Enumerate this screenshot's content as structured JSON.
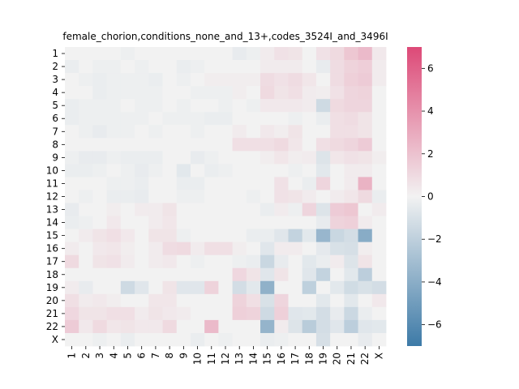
{
  "chart_data": {
    "type": "heatmap",
    "title": "female_chorion,conditions_none_and_13+,codes_3524I_and_3496I",
    "row_labels": [
      "1",
      "2",
      "3",
      "4",
      "5",
      "6",
      "7",
      "8",
      "9",
      "10",
      "11",
      "12",
      "13",
      "14",
      "15",
      "16",
      "17",
      "18",
      "19",
      "20",
      "21",
      "22",
      "X"
    ],
    "col_labels": [
      "1",
      "2",
      "3",
      "4",
      "5",
      "6",
      "7",
      "8",
      "9",
      "10",
      "11",
      "12",
      "13",
      "14",
      "15",
      "16",
      "17",
      "18",
      "19",
      "20",
      "21",
      "22",
      "X"
    ],
    "colorbar": {
      "vmin": -7,
      "vmax": 7,
      "ticks": [
        -6,
        -4,
        -2,
        0,
        2,
        4,
        6
      ],
      "tick_labels": [
        "−6",
        "−4",
        "−2",
        "0",
        "2",
        "4",
        "6"
      ],
      "low_color": "#3d7aa7",
      "mid_color": "#f2f2f2",
      "high_color": "#dd4977"
    },
    "values": [
      [
        0.0,
        0.0,
        0.0,
        0.0,
        -0.2,
        0.0,
        0.0,
        0.0,
        0.0,
        0.0,
        0.0,
        0.0,
        -0.4,
        -0.2,
        0.3,
        0.7,
        0.6,
        0.0,
        0.7,
        1.0,
        1.8,
        2.3,
        0.4
      ],
      [
        -0.3,
        0.0,
        -0.2,
        -0.2,
        0.0,
        -0.2,
        0.0,
        0.0,
        -0.3,
        -0.2,
        0.0,
        0.0,
        0.0,
        0.0,
        0.3,
        0.3,
        0.3,
        0.0,
        -0.4,
        0.9,
        1.3,
        1.5,
        0.3
      ],
      [
        0.0,
        -0.2,
        -0.3,
        -0.2,
        -0.2,
        -0.2,
        -0.3,
        0.0,
        -0.2,
        0.0,
        0.2,
        0.2,
        0.2,
        0.2,
        0.9,
        0.7,
        0.9,
        0.5,
        0.0,
        0.9,
        1.4,
        1.6,
        0.3
      ],
      [
        0.0,
        0.0,
        -0.3,
        -0.2,
        -0.2,
        -0.2,
        -0.2,
        0.0,
        0.0,
        -0.2,
        -0.2,
        -0.2,
        0.2,
        0.0,
        1.0,
        0.6,
        0.8,
        0.3,
        0.2,
        0.7,
        1.2,
        1.3,
        0.0
      ],
      [
        -0.3,
        -0.2,
        -0.2,
        -0.2,
        0.0,
        -0.2,
        -0.2,
        0.0,
        -0.2,
        0.0,
        0.0,
        -0.2,
        0.0,
        -0.2,
        0.4,
        0.4,
        0.4,
        0.3,
        -1.4,
        1.0,
        1.2,
        1.2,
        0.0
      ],
      [
        -0.3,
        -0.2,
        -0.2,
        -0.2,
        -0.2,
        -0.2,
        0.0,
        -0.2,
        -0.2,
        -0.2,
        -0.3,
        -0.3,
        0.0,
        0.0,
        0.0,
        0.0,
        -0.2,
        0.0,
        -0.3,
        0.8,
        0.9,
        0.6,
        0.0
      ],
      [
        0.0,
        -0.2,
        -0.4,
        -0.2,
        -0.2,
        0.0,
        -0.2,
        0.0,
        0.0,
        -0.2,
        0.0,
        0.0,
        0.3,
        0.0,
        0.4,
        0.2,
        0.6,
        0.0,
        0.0,
        0.8,
        0.8,
        0.6,
        0.0
      ],
      [
        0.0,
        0.0,
        0.0,
        0.0,
        0.0,
        0.0,
        0.0,
        0.0,
        0.0,
        0.0,
        0.0,
        0.0,
        0.8,
        0.8,
        0.8,
        1.0,
        0.5,
        0.0,
        0.8,
        1.0,
        1.2,
        1.6,
        0.0
      ],
      [
        -0.2,
        -0.4,
        -0.4,
        -0.2,
        -0.3,
        -0.3,
        -0.3,
        0.0,
        0.0,
        -0.4,
        -0.2,
        0.0,
        0.0,
        0.0,
        0.2,
        0.5,
        0.2,
        0.3,
        -0.8,
        0.5,
        0.7,
        0.6,
        0.2
      ],
      [
        -0.3,
        -0.3,
        -0.2,
        0.0,
        -0.2,
        -0.4,
        -0.2,
        0.0,
        -0.6,
        0.0,
        -0.3,
        -0.2,
        0.0,
        0.0,
        0.0,
        0.0,
        -0.2,
        0.0,
        -0.6,
        0.0,
        0.3,
        0.3,
        0.0
      ],
      [
        0.0,
        0.0,
        0.0,
        -0.2,
        -0.2,
        -0.3,
        0.0,
        0.0,
        -0.3,
        -0.3,
        0.0,
        0.0,
        0.0,
        0.0,
        0.0,
        0.7,
        0.0,
        -0.3,
        1.2,
        0.0,
        0.3,
        2.6,
        0.0
      ],
      [
        0.0,
        -0.2,
        0.0,
        -0.3,
        -0.3,
        -0.4,
        0.0,
        0.0,
        -0.2,
        -0.2,
        0.0,
        0.0,
        0.0,
        -0.2,
        0.0,
        0.7,
        0.6,
        0.3,
        0.0,
        0.3,
        0.5,
        1.0,
        -0.3
      ],
      [
        -0.4,
        0.0,
        0.0,
        0.2,
        0.0,
        0.3,
        0.3,
        0.6,
        0.0,
        0.0,
        0.0,
        0.0,
        0.0,
        0.0,
        -0.3,
        0.3,
        -0.2,
        1.2,
        -0.8,
        1.6,
        1.8,
        0.0,
        0.3
      ],
      [
        -0.3,
        -0.2,
        0.0,
        0.4,
        0.0,
        0.0,
        0.3,
        0.5,
        0.0,
        0.0,
        0.0,
        0.0,
        0.0,
        0.0,
        0.0,
        0.0,
        0.0,
        0.0,
        -0.4,
        1.3,
        1.4,
        0.3,
        0.0
      ],
      [
        0.0,
        0.3,
        0.6,
        0.8,
        0.4,
        0.0,
        0.6,
        0.6,
        -0.2,
        0.0,
        0.0,
        0.0,
        0.0,
        -0.3,
        -0.3,
        -0.7,
        -1.8,
        -0.6,
        -3.5,
        -1.6,
        -1.2,
        -4.1,
        0.0
      ],
      [
        0.3,
        0.0,
        0.4,
        0.5,
        0.2,
        0.0,
        0.3,
        0.9,
        1.0,
        0.3,
        0.8,
        0.8,
        0.2,
        0.0,
        -0.7,
        0.3,
        0.3,
        0.0,
        -0.5,
        -1.0,
        -1.1,
        0.2,
        0.0
      ],
      [
        1.0,
        0.0,
        0.6,
        0.7,
        0.3,
        0.0,
        0.3,
        0.4,
        0.0,
        -0.2,
        0.0,
        0.0,
        -0.2,
        -0.3,
        -1.6,
        -0.4,
        0.0,
        -0.6,
        -0.3,
        0.3,
        -0.8,
        0.6,
        0.0
      ],
      [
        0.0,
        0.0,
        0.0,
        0.0,
        0.0,
        0.0,
        0.0,
        0.0,
        0.0,
        0.0,
        0.0,
        0.0,
        1.1,
        0.6,
        -0.7,
        0.6,
        0.0,
        -0.7,
        -1.8,
        0.0,
        -0.6,
        -2.1,
        0.0
      ],
      [
        0.3,
        -0.4,
        0.0,
        0.0,
        -1.4,
        -0.7,
        0.0,
        0.6,
        -0.7,
        -0.7,
        1.3,
        0.0,
        -1.2,
        -0.6,
        -3.8,
        0.0,
        0.0,
        -2.0,
        0.0,
        -0.6,
        -1.3,
        -1.0,
        -1.2
      ],
      [
        0.8,
        0.3,
        0.4,
        0.2,
        0.0,
        0.0,
        0.5,
        0.5,
        0.0,
        0.0,
        0.0,
        0.0,
        1.3,
        0.8,
        -1.0,
        1.2,
        0.0,
        0.0,
        -0.6,
        0.0,
        -0.6,
        0.0,
        0.4
      ],
      [
        1.1,
        0.6,
        0.6,
        0.8,
        0.8,
        0.3,
        0.6,
        0.4,
        0.3,
        0.0,
        0.0,
        0.0,
        1.4,
        1.3,
        -1.4,
        1.4,
        -0.7,
        -0.6,
        -1.2,
        -0.4,
        -1.5,
        -0.3,
        0.0
      ],
      [
        1.6,
        0.4,
        1.0,
        0.5,
        0.6,
        0.4,
        0.4,
        1.0,
        0.0,
        0.0,
        2.3,
        0.0,
        0.0,
        0.0,
        -3.6,
        0.3,
        -0.8,
        -2.2,
        -1.2,
        -0.7,
        -2.1,
        -0.7,
        -0.6
      ],
      [
        0.0,
        0.0,
        -0.2,
        0.0,
        -0.3,
        0.0,
        0.0,
        0.0,
        0.0,
        -0.3,
        0.0,
        -0.2,
        0.0,
        0.0,
        -0.3,
        -0.2,
        0.0,
        0.0,
        -1.1,
        0.0,
        0.0,
        -0.4,
        0.0
      ]
    ]
  }
}
